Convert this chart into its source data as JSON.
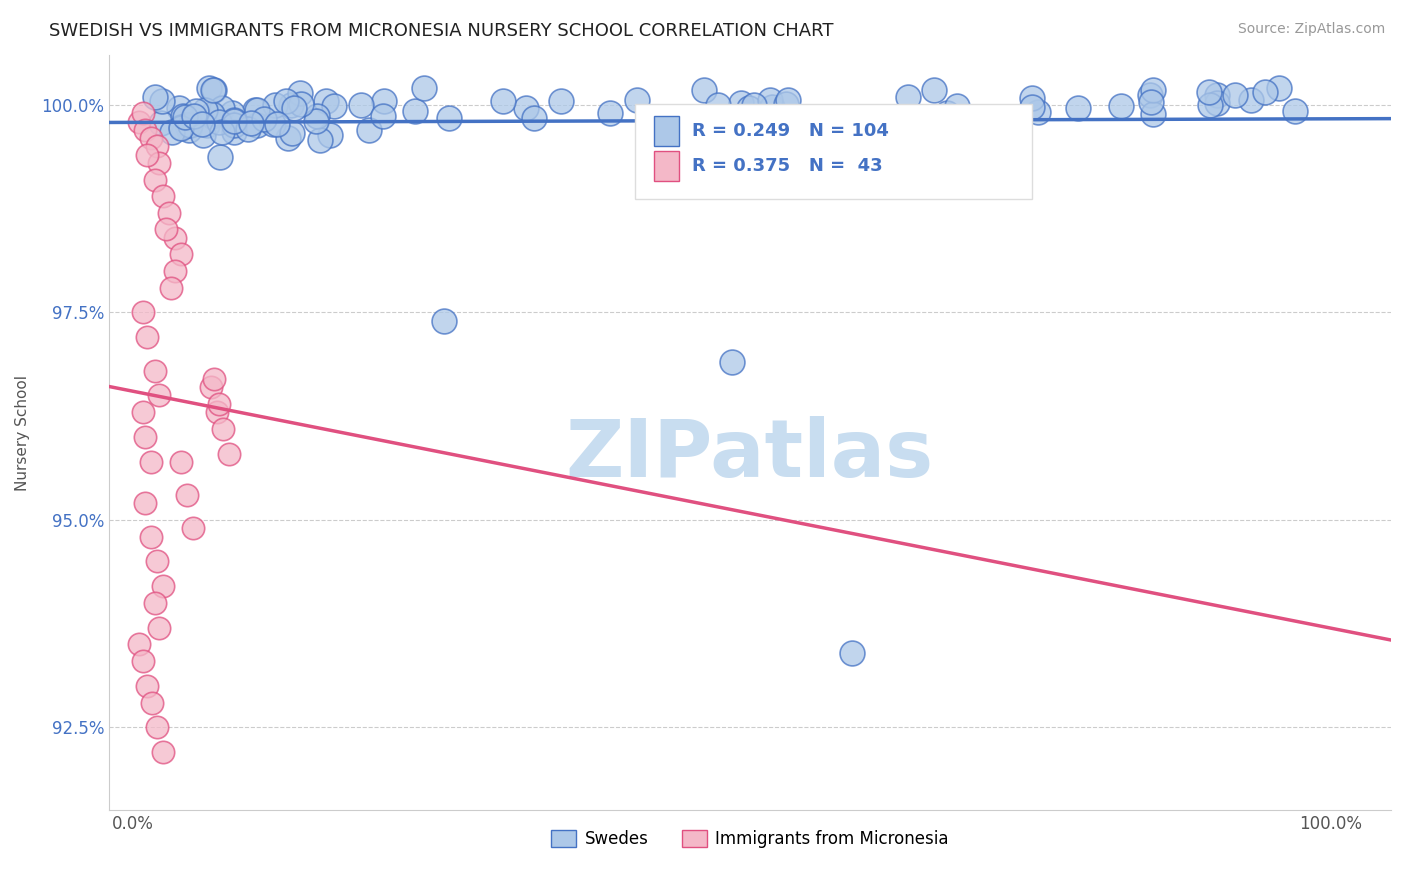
{
  "title": "SWEDISH VS IMMIGRANTS FROM MICRONESIA NURSERY SCHOOL CORRELATION CHART",
  "source": "Source: ZipAtlas.com",
  "ylabel": "Nursery School",
  "legend_label_blue": "Swedes",
  "legend_label_pink": "Immigrants from Micronesia",
  "R_blue": 0.249,
  "N_blue": 104,
  "R_pink": 0.375,
  "N_pink": 43,
  "blue_face_color": "#adc8e8",
  "blue_edge_color": "#4472c4",
  "pink_face_color": "#f4b8c8",
  "pink_edge_color": "#e05080",
  "blue_line_color": "#4472c4",
  "pink_line_color": "#e05080",
  "watermark_color": "#c8ddf0",
  "xlim": [
    -0.02,
    1.05
  ],
  "ylim": [
    0.915,
    1.006
  ],
  "yticks": [
    0.925,
    0.95,
    0.975,
    1.0
  ],
  "xticks": [
    0.0,
    1.0
  ],
  "background_color": "#ffffff",
  "grid_color": "#cccccc",
  "title_fontsize": 13,
  "source_fontsize": 10,
  "tick_fontsize": 12,
  "ylabel_fontsize": 11
}
